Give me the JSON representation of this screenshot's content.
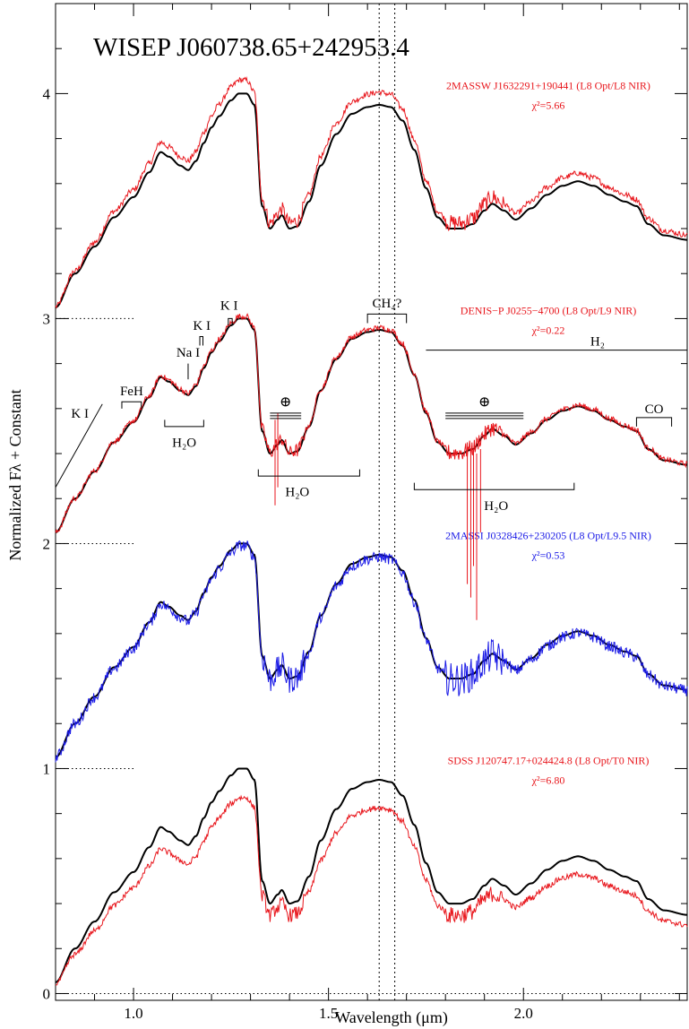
{
  "chart_data": {
    "type": "line",
    "title": "WISEP J060738.65+242953.4",
    "xlabel": "Wavelength (μm)",
    "ylabel": "Normalized Fλ + Constant",
    "xlim": [
      0.8,
      2.42
    ],
    "ylim": [
      -0.03,
      4.4
    ],
    "x_ticks": [
      "1.0",
      "1.5",
      "2.0"
    ],
    "y_ticks": [
      "0",
      "1",
      "2",
      "3",
      "4"
    ],
    "offset_levels": [
      0,
      1,
      2,
      3
    ],
    "reference_lines_x": [
      1.63,
      1.67
    ],
    "series": [
      {
        "name": "2MASSW J1632291+190441 (L8 Opt/L8 NIR)",
        "chi2": "χ²=5.66",
        "color": "#e8161c",
        "offset": 3,
        "scale": 1.06
      },
      {
        "name": "DENIS−P J0255−4700 (L8 Opt/L9 NIR)",
        "chi2": "χ²=0.22",
        "color": "#e8161c",
        "offset": 2,
        "scale": 1.01
      },
      {
        "name": "2MASSI J0328426+230205 (L8 Opt/L9.5 NIR)",
        "chi2": "χ²=0.53",
        "color": "#1a1ae6",
        "offset": 1,
        "scale": 0.99
      },
      {
        "name": "SDSS J120747.17+024424.8 (L8 Opt/T0 NIR)",
        "chi2": "χ²=6.80",
        "color": "#e8161c",
        "offset": 0,
        "scale": 0.87
      }
    ],
    "target_spectrum": {
      "color": "#000000",
      "x": [
        0.8,
        0.85,
        0.9,
        0.95,
        1.0,
        1.04,
        1.07,
        1.09,
        1.12,
        1.14,
        1.16,
        1.18,
        1.2,
        1.22,
        1.25,
        1.27,
        1.29,
        1.31,
        1.33,
        1.35,
        1.37,
        1.38,
        1.4,
        1.42,
        1.45,
        1.48,
        1.52,
        1.56,
        1.6,
        1.63,
        1.66,
        1.69,
        1.72,
        1.75,
        1.78,
        1.81,
        1.84,
        1.87,
        1.9,
        1.92,
        1.95,
        1.98,
        2.02,
        2.06,
        2.1,
        2.14,
        2.18,
        2.22,
        2.26,
        2.29,
        2.32,
        2.36,
        2.42
      ],
      "y": [
        0.05,
        0.2,
        0.32,
        0.45,
        0.54,
        0.65,
        0.74,
        0.72,
        0.68,
        0.66,
        0.7,
        0.78,
        0.85,
        0.9,
        0.97,
        1.0,
        1.0,
        0.95,
        0.5,
        0.4,
        0.44,
        0.46,
        0.4,
        0.41,
        0.52,
        0.68,
        0.82,
        0.91,
        0.94,
        0.95,
        0.94,
        0.88,
        0.75,
        0.58,
        0.45,
        0.4,
        0.4,
        0.42,
        0.48,
        0.51,
        0.48,
        0.44,
        0.49,
        0.55,
        0.59,
        0.61,
        0.59,
        0.55,
        0.52,
        0.5,
        0.42,
        0.37,
        0.35
      ]
    },
    "annotations": {
      "features": [
        "K I",
        "FeH",
        "Na I",
        "K I",
        "K I",
        "CH₄?",
        "H₂",
        "CO"
      ],
      "water": [
        "H₂O",
        "H₂O",
        "H₂O"
      ],
      "telluric": [
        "⊕",
        "⊕"
      ]
    }
  }
}
